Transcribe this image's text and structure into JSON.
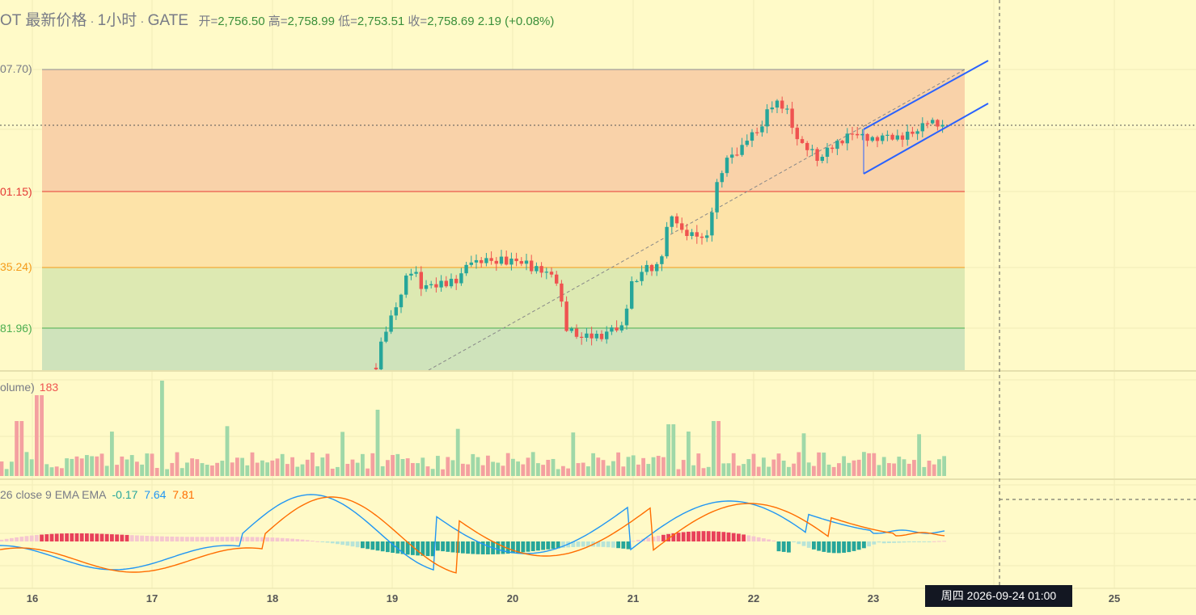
{
  "header": {
    "symbol": "OT 最新价格",
    "interval": "1小时",
    "exchange": "GATE",
    "sep": "·",
    "open_label": "开=",
    "open": "2,756.50",
    "high_label": "高=",
    "high": "2,758.99",
    "low_label": "低=",
    "low": "2,753.51",
    "close_label": "收=",
    "close": "2,758.69",
    "change": "2.19 (+0.08%)"
  },
  "fib_levels": [
    {
      "label": "07.70)",
      "color": "#787b86"
    },
    {
      "label": "01.15)",
      "color": "#e53935"
    },
    {
      "label": "35.24)",
      "color": "#f59c1a"
    },
    {
      "label": "81.96)",
      "color": "#4caf50"
    }
  ],
  "volume_pane": {
    "title": "olume)",
    "value": "183"
  },
  "macd_pane": {
    "title": "26 close 9 EMA EMA",
    "hist": "-0.17",
    "macd": "7.64",
    "signal": "7.81"
  },
  "x_axis": {
    "ticks": [
      "16",
      "17",
      "18",
      "19",
      "20",
      "21",
      "22",
      "23",
      "25"
    ]
  },
  "crosshair_label": "周四 2026-09-24   01:00",
  "colors": {
    "up": "#26a69a",
    "down": "#ef5350",
    "macd_line": "#2196f3",
    "signal_line": "#ff6d00",
    "channel": "#2962ff"
  },
  "chart_data": {
    "type": "candlestick",
    "interval": "1h",
    "last_candle": {
      "open": 2756.5,
      "high": 2758.99,
      "low": 2753.51,
      "close": 2758.69,
      "change": 2.19,
      "change_pct": 0.08
    },
    "volume_last": 183,
    "macd_last": {
      "histogram": -0.17,
      "macd": 7.64,
      "signal": 7.81
    },
    "x_ticks": [
      "16",
      "17",
      "18",
      "19",
      "20",
      "21",
      "22",
      "23",
      "25"
    ]
  }
}
